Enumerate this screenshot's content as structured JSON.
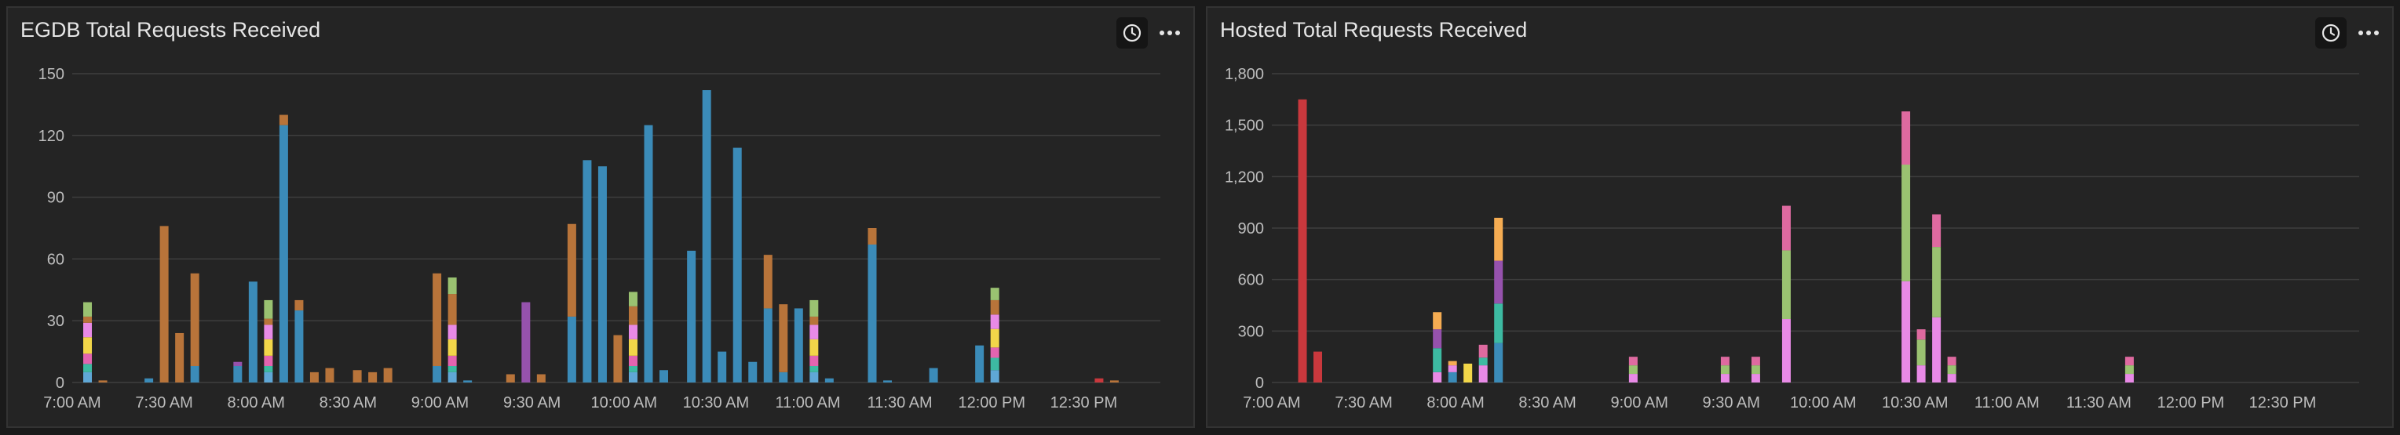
{
  "colors": {
    "background": "#1a1a1a",
    "panel": "#242424",
    "grid": "#3e3e3e",
    "text": "#e6e6e6",
    "tick": "#bdbdbd",
    "palette": {
      "blue": "#3b8bb8",
      "brown": "#b8743a",
      "teal": "#3dbaa2",
      "yellow": "#f2d649",
      "orange": "#f5ac52",
      "pink": "#e364b0",
      "purple": "#9652ad",
      "green": "#9ac271",
      "red": "#c9383d",
      "violet": "#e88ae6",
      "rose": "#de6aa0",
      "sky": "#5fa7d6"
    }
  },
  "icons": {
    "clock": "clock-icon",
    "more": "more-options-icon"
  },
  "panels": [
    {
      "title": "EGDB Total Requests Received"
    },
    {
      "title": "Hosted Total Requests Received"
    }
  ],
  "chart_data": [
    {
      "type": "bar",
      "stacked": true,
      "title": "EGDB Total Requests Received",
      "xlabel": "",
      "ylabel": "",
      "xlim": [
        420,
        775
      ],
      "ylim": [
        0,
        150
      ],
      "grid": true,
      "yticks": [
        0,
        30,
        60,
        90,
        120,
        150
      ],
      "ytick_labels": [
        "0",
        "30",
        "60",
        "90",
        "120",
        "150"
      ],
      "xticks": [
        420,
        450,
        480,
        510,
        540,
        570,
        600,
        630,
        660,
        690,
        720,
        750
      ],
      "xtick_labels": [
        "7:00 AM",
        "7:30 AM",
        "8:00 AM",
        "8:30 AM",
        "9:00 AM",
        "9:30 AM",
        "10:00 AM",
        "10:30 AM",
        "11:00 AM",
        "11:30 AM",
        "12:00 PM",
        "12:30 PM"
      ],
      "bars": [
        {
          "t": 425,
          "segs": [
            [
              "sky",
              5
            ],
            [
              "teal",
              4
            ],
            [
              "pink",
              5
            ],
            [
              "yellow",
              8
            ],
            [
              "violet",
              7
            ],
            [
              "brown",
              3
            ],
            [
              "green",
              7
            ]
          ]
        },
        {
          "t": 430,
          "segs": [
            [
              "brown",
              1
            ]
          ]
        },
        {
          "t": 445,
          "segs": [
            [
              "blue",
              2
            ]
          ]
        },
        {
          "t": 450,
          "segs": [
            [
              "brown",
              76
            ]
          ]
        },
        {
          "t": 455,
          "segs": [
            [
              "brown",
              24
            ]
          ]
        },
        {
          "t": 460,
          "segs": [
            [
              "blue",
              8
            ],
            [
              "brown",
              45
            ]
          ]
        },
        {
          "t": 474,
          "segs": [
            [
              "blue",
              8
            ],
            [
              "purple",
              2
            ]
          ]
        },
        {
          "t": 479,
          "segs": [
            [
              "blue",
              49
            ]
          ]
        },
        {
          "t": 484,
          "segs": [
            [
              "sky",
              5
            ],
            [
              "teal",
              3
            ],
            [
              "pink",
              5
            ],
            [
              "yellow",
              8
            ],
            [
              "violet",
              7
            ],
            [
              "brown",
              3
            ],
            [
              "green",
              9
            ]
          ]
        },
        {
          "t": 489,
          "segs": [
            [
              "blue",
              125
            ],
            [
              "brown",
              5
            ]
          ]
        },
        {
          "t": 494,
          "segs": [
            [
              "blue",
              35
            ],
            [
              "brown",
              5
            ]
          ]
        },
        {
          "t": 499,
          "segs": [
            [
              "brown",
              5
            ]
          ]
        },
        {
          "t": 504,
          "segs": [
            [
              "brown",
              7
            ]
          ]
        },
        {
          "t": 513,
          "segs": [
            [
              "brown",
              6
            ]
          ]
        },
        {
          "t": 518,
          "segs": [
            [
              "brown",
              5
            ]
          ]
        },
        {
          "t": 523,
          "segs": [
            [
              "brown",
              7
            ]
          ]
        },
        {
          "t": 539,
          "segs": [
            [
              "blue",
              8
            ],
            [
              "brown",
              45
            ]
          ]
        },
        {
          "t": 544,
          "segs": [
            [
              "sky",
              5
            ],
            [
              "teal",
              3
            ],
            [
              "pink",
              5
            ],
            [
              "yellow",
              8
            ],
            [
              "violet",
              7
            ],
            [
              "brown",
              15
            ],
            [
              "green",
              8
            ]
          ]
        },
        {
          "t": 549,
          "segs": [
            [
              "blue",
              1
            ]
          ]
        },
        {
          "t": 563,
          "segs": [
            [
              "brown",
              4
            ]
          ]
        },
        {
          "t": 568,
          "segs": [
            [
              "purple",
              39
            ]
          ]
        },
        {
          "t": 573,
          "segs": [
            [
              "brown",
              4
            ]
          ]
        },
        {
          "t": 583,
          "segs": [
            [
              "blue",
              32
            ],
            [
              "brown",
              45
            ]
          ]
        },
        {
          "t": 588,
          "segs": [
            [
              "blue",
              108
            ]
          ]
        },
        {
          "t": 593,
          "segs": [
            [
              "blue",
              105
            ]
          ]
        },
        {
          "t": 598,
          "segs": [
            [
              "brown",
              23
            ]
          ]
        },
        {
          "t": 603,
          "segs": [
            [
              "sky",
              5
            ],
            [
              "teal",
              3
            ],
            [
              "pink",
              5
            ],
            [
              "yellow",
              8
            ],
            [
              "violet",
              7
            ],
            [
              "brown",
              9
            ],
            [
              "green",
              7
            ]
          ]
        },
        {
          "t": 608,
          "segs": [
            [
              "blue",
              125
            ]
          ]
        },
        {
          "t": 613,
          "segs": [
            [
              "blue",
              6
            ]
          ]
        },
        {
          "t": 622,
          "segs": [
            [
              "blue",
              64
            ]
          ]
        },
        {
          "t": 627,
          "segs": [
            [
              "blue",
              142
            ]
          ]
        },
        {
          "t": 632,
          "segs": [
            [
              "blue",
              15
            ]
          ]
        },
        {
          "t": 637,
          "segs": [
            [
              "blue",
              114
            ]
          ]
        },
        {
          "t": 642,
          "segs": [
            [
              "blue",
              10
            ]
          ]
        },
        {
          "t": 647,
          "segs": [
            [
              "blue",
              36
            ],
            [
              "brown",
              26
            ]
          ]
        },
        {
          "t": 652,
          "segs": [
            [
              "blue",
              5
            ],
            [
              "brown",
              33
            ]
          ]
        },
        {
          "t": 657,
          "segs": [
            [
              "blue",
              36
            ]
          ]
        },
        {
          "t": 662,
          "segs": [
            [
              "sky",
              5
            ],
            [
              "teal",
              3
            ],
            [
              "pink",
              5
            ],
            [
              "yellow",
              8
            ],
            [
              "violet",
              7
            ],
            [
              "brown",
              4
            ],
            [
              "green",
              8
            ]
          ]
        },
        {
          "t": 667,
          "segs": [
            [
              "blue",
              2
            ]
          ]
        },
        {
          "t": 681,
          "segs": [
            [
              "blue",
              67
            ],
            [
              "brown",
              8
            ]
          ]
        },
        {
          "t": 686,
          "segs": [
            [
              "blue",
              1
            ]
          ]
        },
        {
          "t": 701,
          "segs": [
            [
              "blue",
              7
            ]
          ]
        },
        {
          "t": 716,
          "segs": [
            [
              "blue",
              18
            ]
          ]
        },
        {
          "t": 721,
          "segs": [
            [
              "sky",
              6
            ],
            [
              "teal",
              6
            ],
            [
              "pink",
              5
            ],
            [
              "yellow",
              9
            ],
            [
              "violet",
              7
            ],
            [
              "brown",
              7
            ],
            [
              "green",
              6
            ]
          ]
        },
        {
          "t": 755,
          "segs": [
            [
              "red",
              2
            ]
          ]
        },
        {
          "t": 760,
          "segs": [
            [
              "brown",
              1
            ]
          ]
        }
      ]
    },
    {
      "type": "bar",
      "stacked": true,
      "title": "Hosted Total Requests Received",
      "xlabel": "",
      "ylabel": "",
      "xlim": [
        420,
        775
      ],
      "ylim": [
        0,
        1800
      ],
      "grid": true,
      "yticks": [
        0,
        300,
        600,
        900,
        1200,
        1500,
        1800
      ],
      "ytick_labels": [
        "0",
        "300",
        "600",
        "900",
        "1,200",
        "1,500",
        "1,800"
      ],
      "xticks": [
        420,
        450,
        480,
        510,
        540,
        570,
        600,
        630,
        660,
        690,
        720,
        750
      ],
      "xtick_labels": [
        "7:00 AM",
        "7:30 AM",
        "8:00 AM",
        "8:30 AM",
        "9:00 AM",
        "9:30 AM",
        "10:00 AM",
        "10:30 AM",
        "11:00 AM",
        "11:30 AM",
        "12:00 PM",
        "12:30 PM"
      ],
      "bars": [
        {
          "t": 430,
          "segs": [
            [
              "red",
              1650
            ]
          ]
        },
        {
          "t": 435,
          "segs": [
            [
              "red",
              180
            ]
          ]
        },
        {
          "t": 474,
          "segs": [
            [
              "violet",
              60
            ],
            [
              "teal",
              140
            ],
            [
              "purple",
              110
            ],
            [
              "orange",
              100
            ]
          ]
        },
        {
          "t": 479,
          "segs": [
            [
              "blue",
              60
            ],
            [
              "violet",
              40
            ],
            [
              "orange",
              25
            ]
          ]
        },
        {
          "t": 484,
          "segs": [
            [
              "yellow",
              110
            ]
          ]
        },
        {
          "t": 489,
          "segs": [
            [
              "violet",
              100
            ],
            [
              "teal",
              45
            ],
            [
              "rose",
              75
            ]
          ]
        },
        {
          "t": 494,
          "segs": [
            [
              "blue",
              230
            ],
            [
              "teal",
              230
            ],
            [
              "purple",
              250
            ],
            [
              "orange",
              250
            ]
          ]
        },
        {
          "t": 538,
          "segs": [
            [
              "violet",
              50
            ],
            [
              "green",
              50
            ],
            [
              "rose",
              50
            ]
          ]
        },
        {
          "t": 568,
          "segs": [
            [
              "violet",
              50
            ],
            [
              "green",
              50
            ],
            [
              "rose",
              50
            ]
          ]
        },
        {
          "t": 578,
          "segs": [
            [
              "violet",
              50
            ],
            [
              "green",
              50
            ],
            [
              "rose",
              50
            ]
          ]
        },
        {
          "t": 588,
          "segs": [
            [
              "violet",
              370
            ],
            [
              "green",
              400
            ],
            [
              "rose",
              260
            ]
          ]
        },
        {
          "t": 627,
          "segs": [
            [
              "violet",
              590
            ],
            [
              "green",
              680
            ],
            [
              "rose",
              310
            ]
          ]
        },
        {
          "t": 632,
          "segs": [
            [
              "violet",
              100
            ],
            [
              "green",
              150
            ],
            [
              "rose",
              60
            ]
          ]
        },
        {
          "t": 637,
          "segs": [
            [
              "violet",
              380
            ],
            [
              "green",
              410
            ],
            [
              "rose",
              190
            ]
          ]
        },
        {
          "t": 642,
          "segs": [
            [
              "violet",
              50
            ],
            [
              "green",
              50
            ],
            [
              "rose",
              50
            ]
          ]
        },
        {
          "t": 700,
          "segs": [
            [
              "violet",
              50
            ],
            [
              "green",
              50
            ],
            [
              "rose",
              50
            ]
          ]
        }
      ]
    }
  ]
}
